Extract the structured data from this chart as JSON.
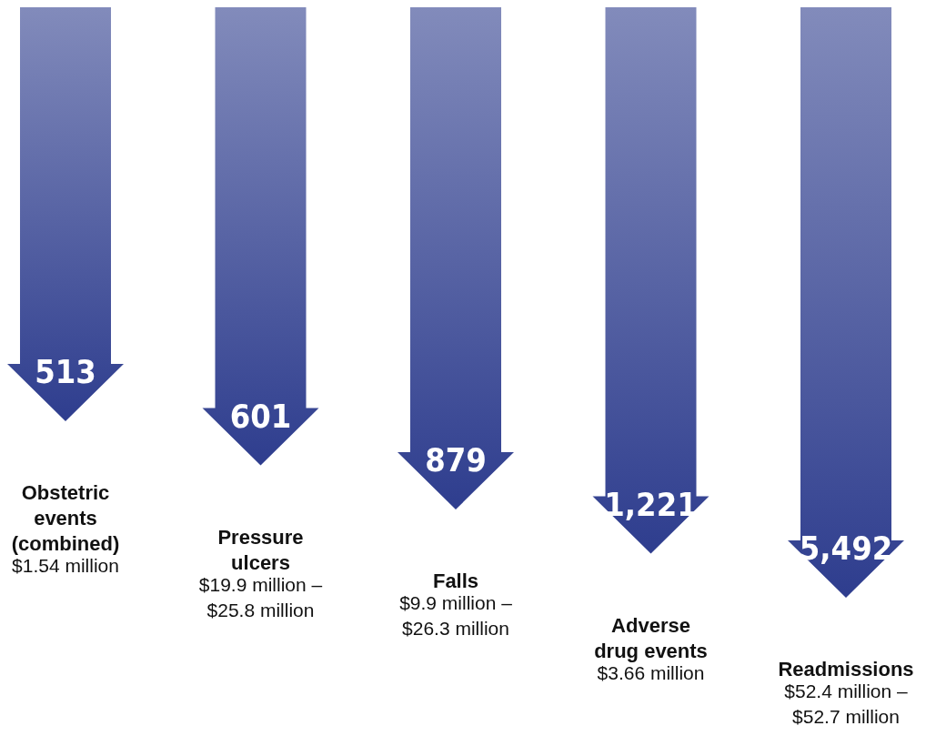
{
  "chart_data": {
    "type": "other",
    "categories": [
      "Obstetric events (combined)",
      "Pressure ulcers",
      "Falls",
      "Adverse drug events",
      "Readmissions"
    ],
    "values": [
      513,
      601,
      879,
      1221,
      5492
    ],
    "value_labels": [
      "513",
      "601",
      "879",
      "1,221",
      "5,492"
    ],
    "annotations": [
      "$1.54 million",
      "$19.9 million – $25.8 million",
      "$9.9 million – $26.3 million",
      "$3.66 million",
      "$52.4 million – $52.7 million"
    ],
    "colors": [
      "#2e3d8e",
      "#2e3d8e",
      "#2e3d8e",
      "#2e3d8e",
      "#2e3d8e"
    ]
  }
}
